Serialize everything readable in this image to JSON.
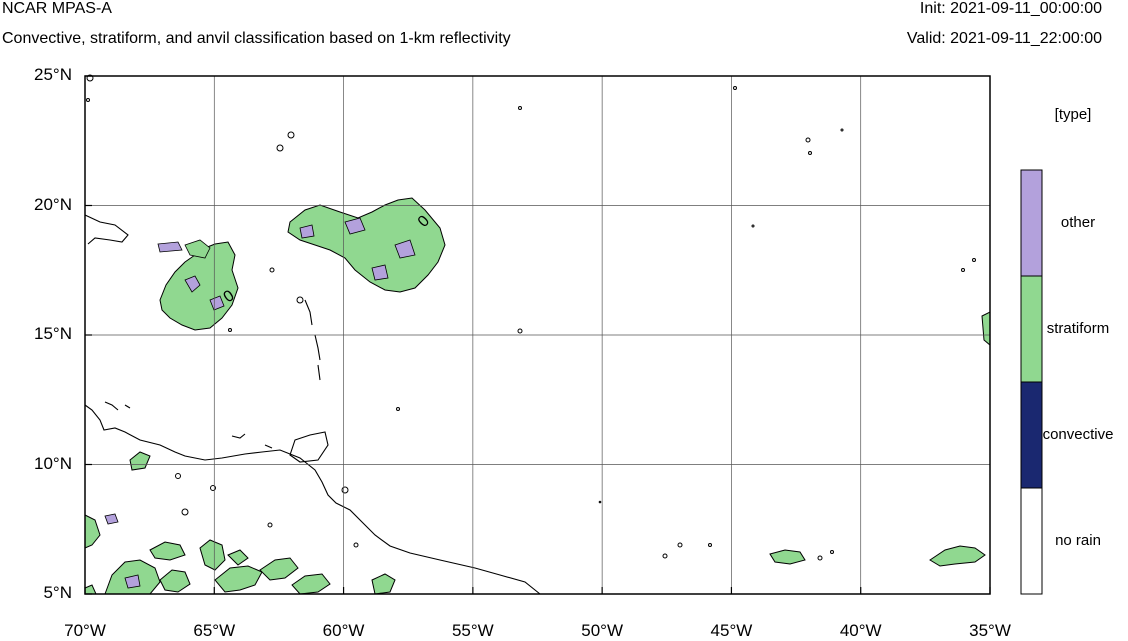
{
  "header": {
    "title": "NCAR MPAS-A",
    "subtitle": "Convective, stratiform, and anvil classification based on 1-km reflectivity",
    "init": "Init: 2021-09-11_00:00:00",
    "valid": "Valid: 2021-09-11_22:00:00"
  },
  "axes": {
    "lat_ticks": [
      "25°N",
      "20°N",
      "15°N",
      "10°N",
      "5°N"
    ],
    "lon_ticks": [
      "70°W",
      "65°W",
      "60°W",
      "55°W",
      "50°W",
      "45°W",
      "40°W",
      "35°W"
    ],
    "lat_range": [
      5,
      25
    ],
    "lon_range": [
      -70,
      -35
    ],
    "grid": true
  },
  "colorbar": {
    "title": "[type]",
    "categories": [
      {
        "label": "other",
        "color": "#b3a1dc"
      },
      {
        "label": "stratiform",
        "color": "#90d890"
      },
      {
        "label": "convective",
        "color": "#1a2870"
      },
      {
        "label": "no rain",
        "color": "#ffffff"
      }
    ]
  },
  "contour_label": "0"
}
